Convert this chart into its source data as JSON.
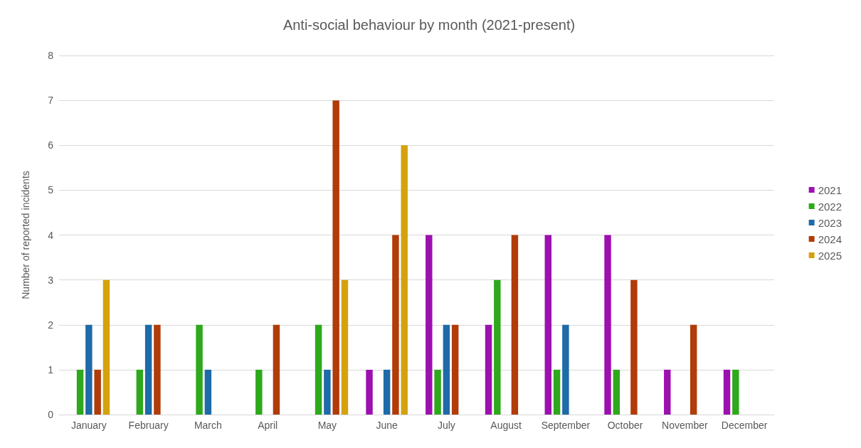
{
  "chart_data": {
    "type": "bar",
    "title": "Anti-social behaviour by month (2021-present)",
    "ylabel": "Number of reported incidents",
    "categories": [
      "January",
      "February",
      "March",
      "April",
      "May",
      "June",
      "July",
      "August",
      "September",
      "October",
      "November",
      "December"
    ],
    "series": [
      {
        "name": "2021",
        "color": "#9c10b0",
        "values": [
          0,
          0,
          0,
          0,
          0,
          1,
          4,
          2,
          4,
          4,
          1,
          1
        ]
      },
      {
        "name": "2022",
        "color": "#2ea81c",
        "values": [
          1,
          1,
          2,
          1,
          2,
          0,
          1,
          3,
          1,
          1,
          0,
          1
        ]
      },
      {
        "name": "2023",
        "color": "#1f6aa8",
        "values": [
          2,
          2,
          1,
          0,
          1,
          1,
          2,
          0,
          2,
          0,
          0,
          0
        ]
      },
      {
        "name": "2024",
        "color": "#b03c0a",
        "values": [
          1,
          2,
          0,
          2,
          7,
          4,
          2,
          4,
          0,
          3,
          2,
          0
        ]
      },
      {
        "name": "2025",
        "color": "#d4a20c",
        "values": [
          3,
          0,
          0,
          0,
          3,
          6,
          0,
          0,
          0,
          0,
          0,
          0
        ]
      }
    ],
    "ylim": [
      0,
      8
    ],
    "yticks": [
      0,
      1,
      2,
      3,
      4,
      5,
      6,
      7,
      8
    ],
    "grid": "y",
    "legend": "right"
  }
}
